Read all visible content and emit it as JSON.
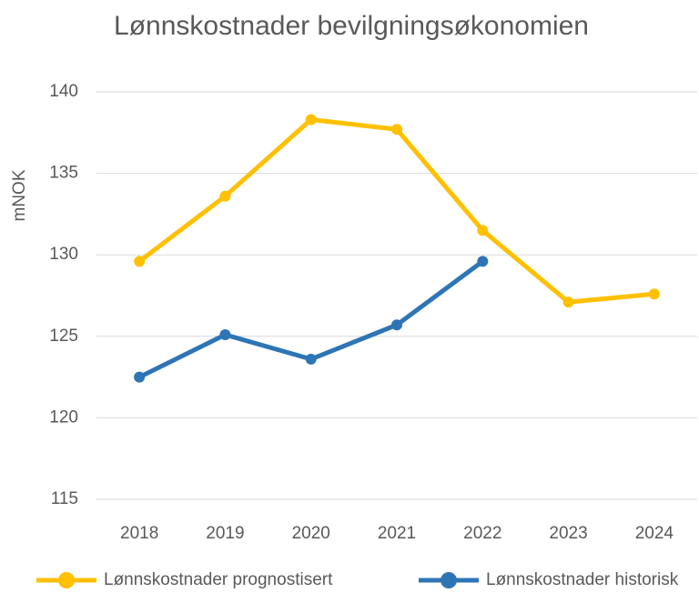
{
  "chart_data": {
    "type": "line",
    "title": "Lønnskostnader bevilgningsøkonomien",
    "y_label": "mNOK",
    "categories": [
      "2018",
      "2019",
      "2020",
      "2021",
      "2022",
      "2023",
      "2024"
    ],
    "series": [
      {
        "name": "Lønnskostnader prognostisert",
        "color": "#ffc000",
        "values": [
          129.6,
          133.6,
          138.3,
          137.7,
          131.5,
          127.1,
          127.6
        ]
      },
      {
        "name": "Lønnskostnader historisk",
        "color": "#2e75b6",
        "values": [
          122.5,
          125.1,
          123.6,
          125.7,
          129.6,
          null,
          null
        ]
      }
    ],
    "ylim": [
      115,
      140
    ],
    "yticks": [
      115,
      120,
      125,
      130,
      135,
      140
    ],
    "grid": true,
    "legend": "bottom"
  }
}
